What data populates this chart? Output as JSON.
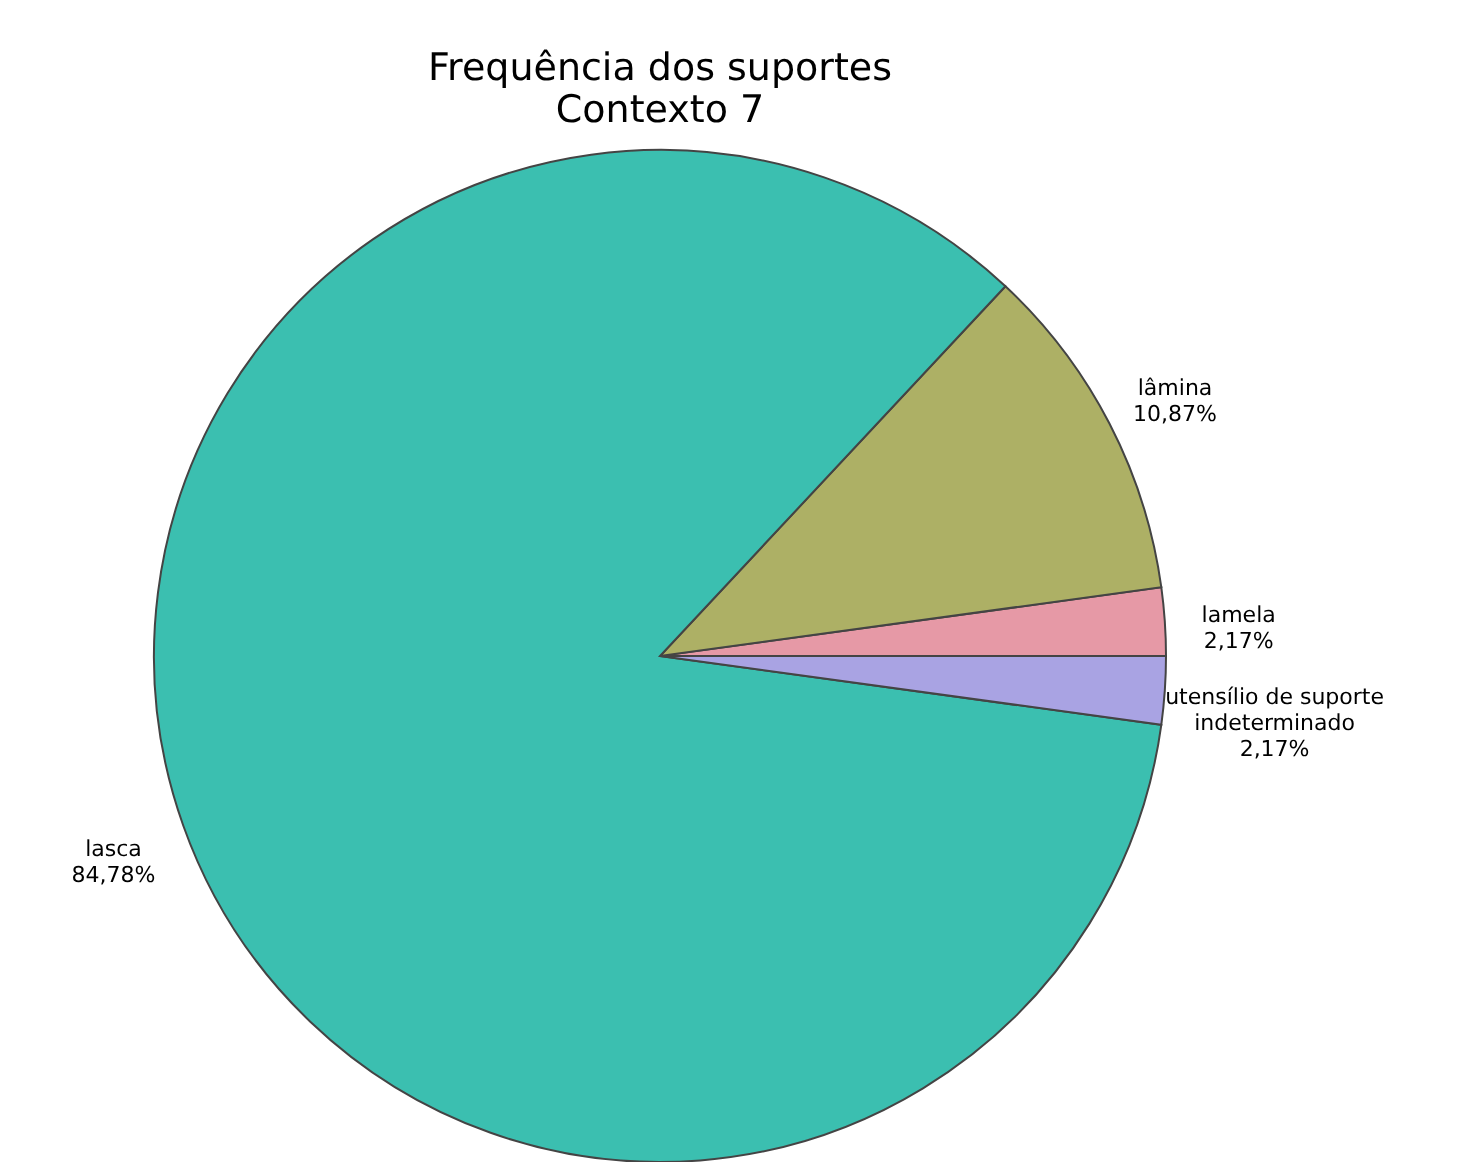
{
  "chart_data": {
    "type": "pie",
    "title": "Frequência dos suportes\nContexto 7",
    "categories": [
      "lamela",
      "lâmina",
      "lasca",
      "utensílio de suporte\nindeterminado"
    ],
    "values": [
      2.17,
      10.87,
      84.78,
      2.17
    ],
    "colors": [
      "#e699a6",
      "#adb065",
      "#3bbfb0",
      "#a9a3e3"
    ],
    "value_labels": [
      "2,17%",
      "10,87%",
      "84,78%",
      "2,17%"
    ]
  }
}
